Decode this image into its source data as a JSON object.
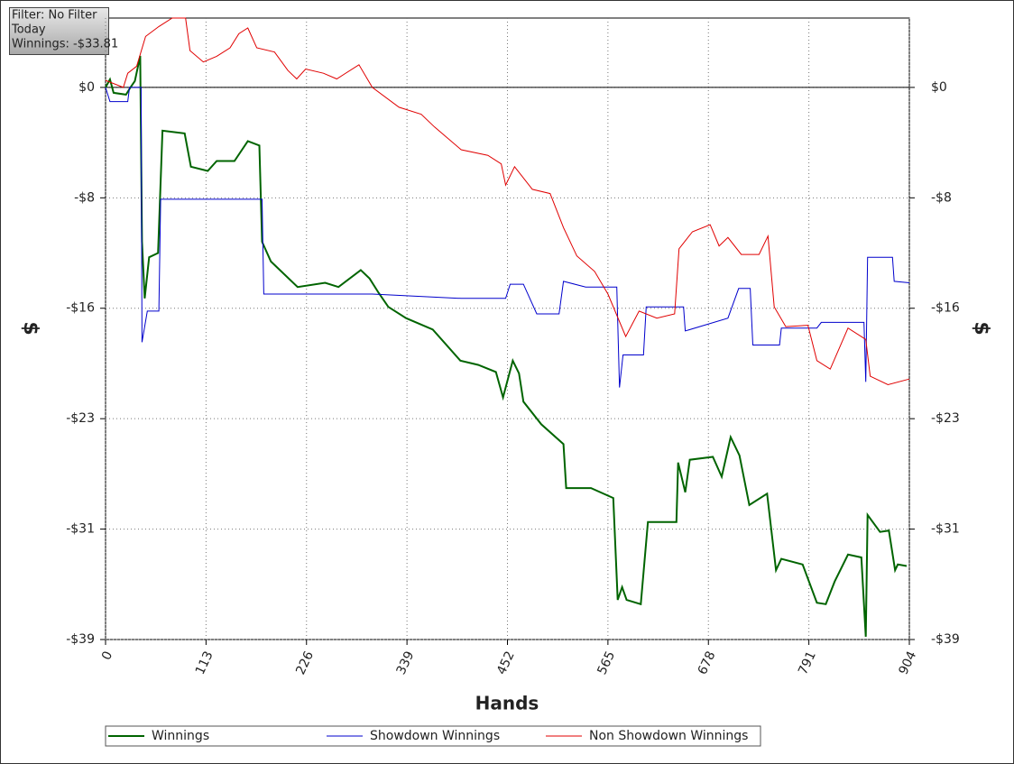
{
  "chart_data": {
    "type": "line",
    "info_box": [
      "Filter: No Filter",
      "Today",
      "Winnings: -$33.81"
    ],
    "x_label": "Hands",
    "y_label": "$",
    "xlim": [
      0,
      904
    ],
    "xticks": [
      0,
      113,
      226,
      339,
      452,
      565,
      678,
      791,
      904
    ],
    "ylim": [
      -39,
      4.9
    ],
    "yticks": [
      {
        "value": 0,
        "label": "$0"
      },
      {
        "value": -7.8,
        "label": "-$8"
      },
      {
        "value": -15.6,
        "label": "-$16"
      },
      {
        "value": -23.4,
        "label": "-$23"
      },
      {
        "value": -31.2,
        "label": "-$31"
      },
      {
        "value": -39,
        "label": "-$39"
      }
    ],
    "grid": true,
    "series": [
      {
        "name": "Winnings",
        "color": "#006400",
        "x": [
          0,
          5,
          9,
          23,
          28,
          33,
          39,
          41,
          44,
          49,
          59,
          64,
          89,
          96,
          115,
          125,
          145,
          160,
          173,
          176,
          186,
          216,
          247,
          262,
          287,
          297,
          307,
          318,
          338,
          368,
          399,
          419,
          439,
          447,
          458,
          465,
          470,
          490,
          515,
          518,
          546,
          571,
          576,
          581,
          586,
          602,
          610,
          642,
          644,
          652,
          657,
          683,
          693,
          703,
          713,
          724,
          744,
          754,
          760,
          784,
          800,
          810,
          820,
          835,
          850,
          855,
          857,
          871,
          881,
          888,
          891,
          901
        ],
        "values": [
          0,
          0.57,
          -0.38,
          -0.51,
          0,
          0.45,
          2.23,
          -10.9,
          -14.9,
          -12.0,
          -11.7,
          -3.06,
          -3.25,
          -5.6,
          -5.9,
          -5.2,
          -5.2,
          -3.8,
          -4.1,
          -10.9,
          -12.3,
          -14.1,
          -13.8,
          -14.1,
          -12.9,
          -13.5,
          -14.5,
          -15.5,
          -16.3,
          -17.1,
          -19.3,
          -19.6,
          -20.1,
          -21.9,
          -19.3,
          -20.2,
          -22.2,
          -23.8,
          -25.2,
          -28.3,
          -28.3,
          -29.0,
          -36.2,
          -35.3,
          -36.2,
          -36.5,
          -30.7,
          -30.7,
          -26.5,
          -28.6,
          -26.3,
          -26.1,
          -27.5,
          -24.7,
          -26.0,
          -29.5,
          -28.7,
          -34.1,
          -33.3,
          -33.7,
          -36.4,
          -36.5,
          -34.9,
          -33.0,
          -33.2,
          -38.8,
          -30.2,
          -31.4,
          -31.3,
          -34.1,
          -33.7,
          -33.81
        ]
      },
      {
        "name": "Showdown Winnings",
        "color": "#0000cc",
        "x": [
          0,
          5,
          25,
          27,
          40,
          41,
          47,
          60,
          62,
          176,
          178,
          300,
          400,
          450,
          455,
          470,
          485,
          510,
          515,
          540,
          575,
          578,
          582,
          605,
          608,
          650,
          652,
          700,
          712,
          725,
          728,
          758,
          760,
          800,
          805,
          853,
          855,
          857,
          885,
          887,
          904
        ],
        "values": [
          0,
          -1.0,
          -1.0,
          0,
          0,
          -18.0,
          -15.8,
          -15.8,
          -7.9,
          -7.9,
          -14.6,
          -14.6,
          -14.9,
          -14.9,
          -13.9,
          -13.9,
          -16.0,
          -16.0,
          -13.7,
          -14.1,
          -14.1,
          -21.2,
          -18.9,
          -18.9,
          -15.5,
          -15.5,
          -17.2,
          -16.3,
          -14.2,
          -14.2,
          -18.2,
          -18.2,
          -17.0,
          -17.0,
          -16.6,
          -16.6,
          -20.8,
          -12.0,
          -12.0,
          -13.7,
          -13.8
        ]
      },
      {
        "name": "Non Showdown Winnings",
        "color": "#e00000",
        "x": [
          0,
          20,
          25,
          35,
          45,
          60,
          75,
          90,
          95,
          110,
          125,
          140,
          150,
          160,
          170,
          190,
          205,
          215,
          225,
          245,
          260,
          285,
          300,
          330,
          355,
          370,
          400,
          430,
          445,
          450,
          460,
          480,
          500,
          515,
          530,
          550,
          565,
          585,
          600,
          620,
          640,
          645,
          660,
          680,
          690,
          700,
          715,
          735,
          745,
          752,
          765,
          790,
          800,
          815,
          835,
          855,
          860,
          880,
          904
        ],
        "values": [
          0.5,
          0,
          1.0,
          1.5,
          3.6,
          4.3,
          4.9,
          4.9,
          2.6,
          1.8,
          2.2,
          2.8,
          3.8,
          4.2,
          2.8,
          2.5,
          1.2,
          0.6,
          1.3,
          1.0,
          0.6,
          1.6,
          0,
          -1.4,
          -1.9,
          -2.8,
          -4.4,
          -4.8,
          -5.4,
          -6.9,
          -5.6,
          -7.2,
          -7.5,
          -9.9,
          -11.9,
          -13.0,
          -14.6,
          -17.6,
          -15.8,
          -16.3,
          -16.0,
          -11.4,
          -10.2,
          -9.7,
          -11.2,
          -10.6,
          -11.8,
          -11.8,
          -10.5,
          -15.5,
          -16.9,
          -16.8,
          -19.3,
          -19.9,
          -17.0,
          -17.8,
          -20.4,
          -21.0,
          -20.6
        ]
      }
    ]
  }
}
